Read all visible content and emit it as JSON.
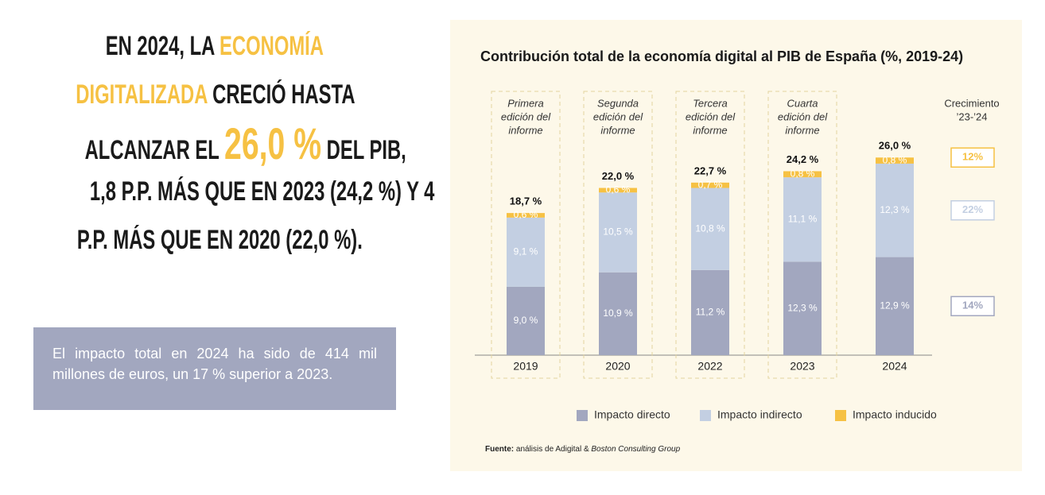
{
  "headline": {
    "lines": [
      [
        "EN 2024, LA ",
        "ECONOMÍA"
      ],
      [
        "DIGITALIZADA",
        " CRECIÓ HASTA"
      ],
      [
        "ALCANZAR EL ",
        "26,0 %",
        " DEL PIB,"
      ],
      [
        "1,8 P.P. MÁS QUE EN 2023 (24,2 %) Y 4"
      ],
      [
        "P.P. MÁS QUE EN 2020 (22,0 %)."
      ]
    ]
  },
  "note": "El impacto total en 2024 ha sido de 414 mil millones de euros, un 17 % superior a 2023.",
  "chart_data": {
    "type": "bar",
    "stacked": true,
    "title": "Contribución total de la economía digital al PIB de España (%, 2019-24)",
    "categories": [
      "2019",
      "2020",
      "2022",
      "2023",
      "2024"
    ],
    "edition_labels": [
      [
        "Primera",
        "edición del",
        "informe"
      ],
      [
        "Segunda",
        "edición del",
        "informe"
      ],
      [
        "Tercera",
        "edición del",
        "informe"
      ],
      [
        "Cuarta",
        "edición del",
        "informe"
      ],
      null
    ],
    "totals": [
      18.7,
      22.0,
      22.7,
      24.2,
      26.0
    ],
    "total_labels": [
      "18,7 %",
      "22,0 %",
      "22,7 %",
      "24,2 %",
      "26,0 %"
    ],
    "series": [
      {
        "name": "Impacto directo",
        "color": "#a2a7bf",
        "values": [
          9.0,
          10.9,
          11.2,
          12.3,
          12.9
        ],
        "value_labels": [
          "9,0 %",
          "10,9 %",
          "11,2 %",
          "12,3 %",
          "12,9 %"
        ],
        "growth_label": "14%"
      },
      {
        "name": "Impacto indirecto",
        "color": "#c3cfe2",
        "values": [
          9.1,
          10.5,
          10.8,
          11.1,
          12.3
        ],
        "value_labels": [
          "9,1 %",
          "10,5 %",
          "10,8 %",
          "11,1 %",
          "12,3 %"
        ],
        "growth_label": "22%"
      },
      {
        "name": "Impacto inducido",
        "color": "#f6c143",
        "values": [
          0.6,
          0.6,
          0.7,
          0.8,
          0.8
        ],
        "value_labels": [
          "0,6 %",
          "0,6 %",
          "0,7 %",
          "0,8 %",
          "0,8 %"
        ],
        "growth_label": "12%"
      }
    ],
    "growth_title": [
      "Crecimiento",
      "’23-’24"
    ],
    "ylim": [
      0,
      30
    ],
    "legend": "bottom",
    "source": {
      "label": "Fuente:",
      "text": " análisis de Adigital & ",
      "organization": "Boston Consulting Group"
    }
  }
}
